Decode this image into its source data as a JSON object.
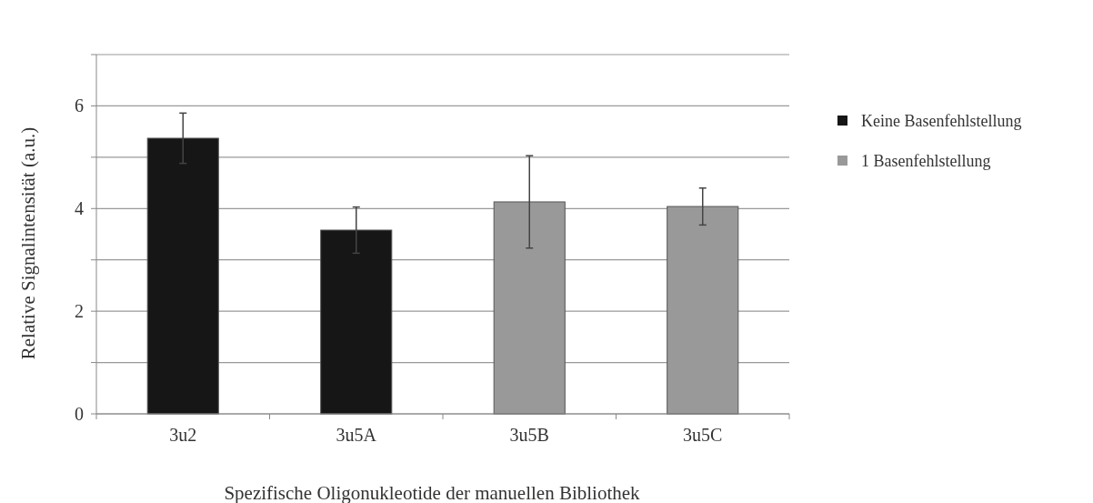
{
  "chart_data": {
    "type": "bar",
    "xlabel": "Spezifische Oligonukleotide der  manuellen Bibliothek",
    "ylabel": "Relative Signalintensität (a.u.)",
    "categories": [
      "3u2",
      "3u5A",
      "3u5B",
      "3u5C"
    ],
    "series": [
      {
        "name": "Keine Basenfehlstellung",
        "color": "#161616",
        "values": [
          5.37,
          3.58,
          null,
          null
        ],
        "errors": [
          0.49,
          0.45,
          null,
          null
        ]
      },
      {
        "name": "1 Basenfehlstellung",
        "color": "#999999",
        "values": [
          null,
          null,
          4.13,
          4.04
        ],
        "errors": [
          null,
          null,
          0.9,
          0.36
        ]
      }
    ],
    "ylim": [
      0,
      7
    ],
    "yticks": [
      0,
      {
        "value": 1,
        "label": null
      },
      2,
      {
        "value": 3,
        "label": null
      },
      4,
      {
        "value": 5,
        "label": null
      },
      6,
      {
        "value": 7,
        "label": null
      }
    ],
    "grid": "y",
    "legend": "right"
  }
}
